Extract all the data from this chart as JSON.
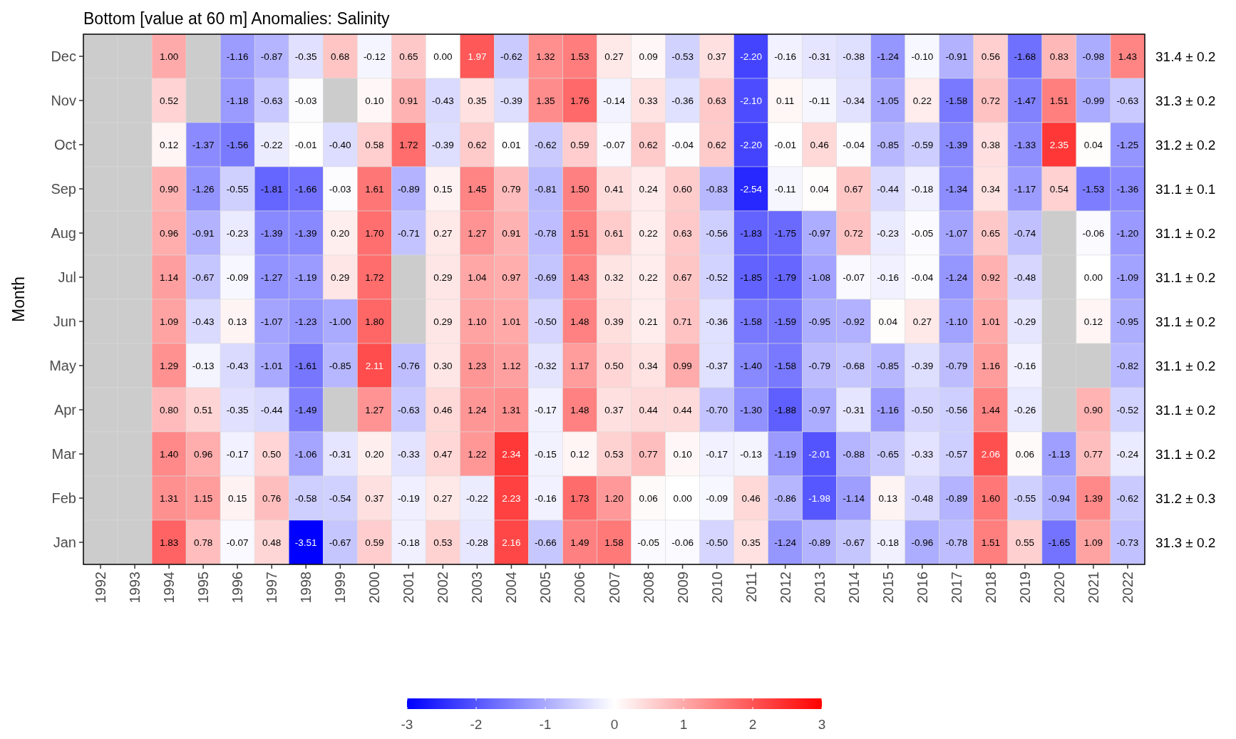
{
  "chart_data": {
    "type": "heatmap",
    "title": "Bottom [value at 60 m] Anomalies: Salinity",
    "ylabel": "Month",
    "categories": [
      "1992",
      "1993",
      "1994",
      "1995",
      "1996",
      "1997",
      "1998",
      "1999",
      "2000",
      "2001",
      "2002",
      "2003",
      "2004",
      "2005",
      "2006",
      "2007",
      "2008",
      "2009",
      "2010",
      "2011",
      "2012",
      "2013",
      "2014",
      "2015",
      "2016",
      "2017",
      "2018",
      "2019",
      "2020",
      "2021",
      "2022"
    ],
    "y_categories": [
      "Dec",
      "Nov",
      "Oct",
      "Sep",
      "Aug",
      "Jul",
      "Jun",
      "May",
      "Apr",
      "Mar",
      "Feb",
      "Jan"
    ],
    "y2_categories": [
      "31.4 ± 0.2",
      "31.3 ± 0.2",
      "31.2 ± 0.2",
      "31.1 ± 0.1",
      "31.1 ± 0.2",
      "31.1 ± 0.2",
      "31.1 ± 0.2",
      "31.1 ± 0.2",
      "31.1 ± 0.2",
      "31.1 ± 0.2",
      "31.2 ± 0.3",
      "31.3 ± 0.2"
    ],
    "cells": [
      [
        null,
        null,
        1.0,
        null,
        -1.16,
        -0.87,
        -0.35,
        0.68,
        -0.12,
        0.65,
        0.0,
        1.97,
        -0.62,
        1.32,
        1.53,
        0.27,
        0.09,
        -0.53,
        0.37,
        -2.2,
        -0.16,
        -0.31,
        -0.38,
        -1.24,
        -0.1,
        -0.91,
        0.56,
        -1.68,
        0.83,
        -0.98,
        1.43
      ],
      [
        null,
        null,
        0.52,
        null,
        -1.18,
        -0.63,
        -0.03,
        null,
        0.1,
        0.91,
        -0.43,
        0.35,
        -0.39,
        1.35,
        1.76,
        -0.14,
        0.33,
        -0.36,
        0.63,
        -2.1,
        0.11,
        -0.11,
        -0.34,
        -1.05,
        0.22,
        -1.58,
        0.72,
        -1.47,
        1.51,
        -0.99,
        -0.63
      ],
      [
        null,
        null,
        0.12,
        -1.37,
        -1.56,
        -0.22,
        -0.01,
        -0.4,
        0.58,
        1.72,
        -0.39,
        0.62,
        0.01,
        -0.62,
        0.59,
        -0.07,
        0.62,
        -0.04,
        0.62,
        -2.2,
        -0.01,
        0.46,
        -0.04,
        -0.85,
        -0.59,
        -1.39,
        0.38,
        -1.33,
        2.35,
        0.04,
        -1.25
      ],
      [
        null,
        null,
        0.9,
        -1.26,
        -0.55,
        -1.81,
        -1.66,
        -0.03,
        1.61,
        -0.89,
        0.15,
        1.45,
        0.79,
        -0.81,
        1.5,
        0.41,
        0.24,
        0.6,
        -0.83,
        -2.54,
        -0.11,
        0.04,
        0.67,
        -0.44,
        -0.18,
        -1.34,
        0.34,
        -1.17,
        0.54,
        -1.53,
        -1.36
      ],
      [
        null,
        null,
        0.96,
        -0.91,
        -0.23,
        -1.39,
        -1.39,
        0.2,
        1.7,
        -0.71,
        0.27,
        1.27,
        0.91,
        -0.78,
        1.51,
        0.61,
        0.22,
        0.63,
        -0.56,
        -1.83,
        -1.75,
        -0.97,
        0.72,
        -0.23,
        -0.05,
        -1.07,
        0.65,
        -0.74,
        null,
        -0.06,
        -1.2
      ],
      [
        null,
        null,
        1.14,
        -0.67,
        -0.09,
        -1.27,
        -1.19,
        0.29,
        1.72,
        null,
        0.29,
        1.04,
        0.97,
        -0.69,
        1.43,
        0.32,
        0.22,
        0.67,
        -0.52,
        -1.85,
        -1.79,
        -1.08,
        -0.07,
        -0.16,
        -0.04,
        -1.24,
        0.92,
        -0.48,
        null,
        0.0,
        -1.09
      ],
      [
        null,
        null,
        1.09,
        -0.43,
        0.13,
        -1.07,
        -1.23,
        -1.0,
        1.8,
        null,
        0.29,
        1.1,
        1.01,
        -0.5,
        1.48,
        0.39,
        0.21,
        0.71,
        -0.36,
        -1.58,
        -1.59,
        -0.95,
        -0.92,
        0.04,
        0.27,
        -1.1,
        1.01,
        -0.29,
        null,
        0.12,
        -0.95
      ],
      [
        null,
        null,
        1.29,
        -0.13,
        -0.43,
        -1.01,
        -1.61,
        -0.85,
        2.11,
        -0.76,
        0.3,
        1.23,
        1.12,
        -0.32,
        1.17,
        0.5,
        0.34,
        0.99,
        -0.37,
        -1.4,
        -1.58,
        -0.79,
        -0.68,
        -0.85,
        -0.39,
        -0.79,
        1.16,
        -0.16,
        null,
        null,
        -0.82
      ],
      [
        null,
        null,
        0.8,
        0.51,
        -0.35,
        -0.44,
        -1.49,
        null,
        1.27,
        -0.63,
        0.46,
        1.24,
        1.31,
        -0.17,
        1.48,
        0.37,
        0.44,
        0.44,
        -0.7,
        -1.3,
        -1.88,
        -0.97,
        -0.31,
        -1.16,
        -0.5,
        -0.56,
        1.44,
        -0.26,
        null,
        0.9,
        -0.52
      ],
      [
        null,
        null,
        1.4,
        0.96,
        -0.17,
        0.5,
        -1.06,
        -0.31,
        0.2,
        -0.33,
        0.47,
        1.22,
        2.34,
        -0.15,
        0.12,
        0.53,
        0.77,
        0.1,
        -0.17,
        -0.13,
        -1.19,
        -2.01,
        -0.88,
        -0.65,
        -0.33,
        -0.57,
        2.06,
        0.06,
        -1.13,
        0.77,
        -0.24
      ],
      [
        null,
        null,
        1.31,
        1.15,
        0.15,
        0.76,
        -0.58,
        -0.54,
        0.37,
        -0.19,
        0.27,
        -0.22,
        2.23,
        -0.16,
        1.73,
        1.2,
        0.06,
        0.0,
        -0.09,
        0.46,
        -0.86,
        -1.98,
        -1.14,
        0.13,
        -0.48,
        -0.89,
        1.6,
        -0.55,
        -0.94,
        1.39,
        -0.62
      ],
      [
        null,
        null,
        1.83,
        0.78,
        -0.07,
        0.48,
        -3.51,
        -0.67,
        0.59,
        -0.18,
        0.53,
        -0.28,
        2.16,
        -0.66,
        1.49,
        1.58,
        -0.05,
        -0.06,
        -0.5,
        0.35,
        -1.24,
        -0.89,
        -0.67,
        -0.18,
        -0.96,
        -0.78,
        1.51,
        0.55,
        -1.65,
        1.09,
        -0.73
      ]
    ],
    "cell_labels": [
      [
        null,
        null,
        "1.00",
        null,
        "-1.16",
        "-0.87",
        "-0.35",
        "0.68",
        "-0.12",
        "0.65",
        "0.00",
        "1.97",
        "-0.62",
        "1.32",
        "1.53",
        "0.27",
        "0.09",
        "-0.53",
        "0.37",
        "-2.20",
        "-0.16",
        "-0.31",
        "-0.38",
        "-1.24",
        "-0.10",
        "-0.91",
        "0.56",
        "-1.68",
        "0.83",
        "-0.98",
        "1.43"
      ],
      [
        null,
        null,
        "0.52",
        null,
        "-1.18",
        "-0.63",
        "-0.03",
        null,
        "0.10",
        "0.91",
        "-0.43",
        "0.35",
        "-0.39",
        "1.35",
        "1.76",
        "-0.14",
        "0.33",
        "-0.36",
        "0.63",
        "-2.10",
        "0.11",
        "-0.11",
        "-0.34",
        "-1.05",
        "0.22",
        "-1.58",
        "0.72",
        "-1.47",
        "1.51",
        "-0.99",
        "-0.63"
      ],
      [
        null,
        null,
        "0.12",
        "-1.37",
        "-1.56",
        "-0.22",
        "-0.01",
        "-0.40",
        "0.58",
        "1.72",
        "-0.39",
        "0.62",
        "0.01",
        "-0.62",
        "0.59",
        "-0.07",
        "0.62",
        "-0.04",
        "0.62",
        "-2.20",
        "-0.01",
        "0.46",
        "-0.04",
        "-0.85",
        "-0.59",
        "-1.39",
        "0.38",
        "-1.33",
        "2.35",
        "0.04",
        "-1.25"
      ],
      [
        null,
        null,
        "0.90",
        "-1.26",
        "-0.55",
        "-1.81",
        "-1.66",
        "-0.03",
        "1.61",
        "-0.89",
        "0.15",
        "1.45",
        "0.79",
        "-0.81",
        "1.50",
        "0.41",
        "0.24",
        "0.60",
        "-0.83",
        "-2.54",
        "-0.11",
        "0.04",
        "0.67",
        "-0.44",
        "-0.18",
        "-1.34",
        "0.34",
        "-1.17",
        "0.54",
        "-1.53",
        "-1.36"
      ],
      [
        null,
        null,
        "0.96",
        "-0.91",
        "-0.23",
        "-1.39",
        "-1.39",
        "0.20",
        "1.70",
        "-0.71",
        "0.27",
        "1.27",
        "0.91",
        "-0.78",
        "1.51",
        "0.61",
        "0.22",
        "0.63",
        "-0.56",
        "-1.83",
        "-1.75",
        "-0.97",
        "0.72",
        "-0.23",
        "-0.05",
        "-1.07",
        "0.65",
        "-0.74",
        null,
        "-0.06",
        "-1.20"
      ],
      [
        null,
        null,
        "1.14",
        "-0.67",
        "-0.09",
        "-1.27",
        "-1.19",
        "0.29",
        "1.72",
        null,
        "0.29",
        "1.04",
        "0.97",
        "-0.69",
        "1.43",
        "0.32",
        "0.22",
        "0.67",
        "-0.52",
        "-1.85",
        "-1.79",
        "-1.08",
        "-0.07",
        "-0.16",
        "-0.04",
        "-1.24",
        "0.92",
        "-0.48",
        null,
        "0.00",
        "-1.09"
      ],
      [
        null,
        null,
        "1.09",
        "-0.43",
        "0.13",
        "-1.07",
        "-1.23",
        "-1.00",
        "1.80",
        null,
        "0.29",
        "1.10",
        "1.01",
        "-0.50",
        "1.48",
        "0.39",
        "0.21",
        "0.71",
        "-0.36",
        "-1.58",
        "-1.59",
        "-0.95",
        "-0.92",
        "0.04",
        "0.27",
        "-1.10",
        "1.01",
        "-0.29",
        null,
        "0.12",
        "-0.95"
      ],
      [
        null,
        null,
        "1.29",
        "-0.13",
        "-0.43",
        "-1.01",
        "-1.61",
        "-0.85",
        "2.11",
        "-0.76",
        "0.30",
        "1.23",
        "1.12",
        "-0.32",
        "1.17",
        "0.50",
        "0.34",
        "0.99",
        "-0.37",
        "-1.40",
        "-1.58",
        "-0.79",
        "-0.68",
        "-0.85",
        "-0.39",
        "-0.79",
        "1.16",
        "-0.16",
        null,
        null,
        "-0.82"
      ],
      [
        null,
        null,
        "0.80",
        "0.51",
        "-0.35",
        "-0.44",
        "-1.49",
        null,
        "1.27",
        "-0.63",
        "0.46",
        "1.24",
        "1.31",
        "-0.17",
        "1.48",
        "0.37",
        "0.44",
        "0.44",
        "-0.70",
        "-1.30",
        "-1.88",
        "-0.97",
        "-0.31",
        "-1.16",
        "-0.50",
        "-0.56",
        "1.44",
        "-0.26",
        null,
        "0.90",
        "-0.52"
      ],
      [
        null,
        null,
        "1.40",
        "0.96",
        "-0.17",
        "0.50",
        "-1.06",
        "-0.31",
        "0.20",
        "-0.33",
        "0.47",
        "1.22",
        "2.34",
        "-0.15",
        "0.12",
        "0.53",
        "0.77",
        "0.10",
        "-0.17",
        "-0.13",
        "-1.19",
        "-2.01",
        "-0.88",
        "-0.65",
        "-0.33",
        "-0.57",
        "2.06",
        "0.06",
        "-1.13",
        "0.77",
        "-0.24"
      ],
      [
        null,
        null,
        "1.31",
        "1.15",
        "0.15",
        "0.76",
        "-0.58",
        "-0.54",
        "0.37",
        "-0.19",
        "0.27",
        "-0.22",
        "2.23",
        "-0.16",
        "1.73",
        "1.20",
        "0.06",
        "0.00",
        "-0.09",
        "0.46",
        "-0.86",
        "-1.98",
        "-1.14",
        "0.13",
        "-0.48",
        "-0.89",
        "1.60",
        "-0.55",
        "-0.94",
        "1.39",
        "-0.62"
      ],
      [
        null,
        null,
        "1.83",
        "0.78",
        "-0.07",
        "0.48",
        "-3.51",
        "-0.67",
        "0.59",
        "-0.18",
        "0.53",
        "-0.28",
        "2.16",
        "-0.66",
        "1.49",
        "1.58",
        "-0.05",
        "-0.06",
        "-0.50",
        "0.35",
        "-1.24",
        "-0.89",
        "-0.67",
        "-0.18",
        "-0.96",
        "-0.78",
        "1.51",
        "0.55",
        "-1.65",
        "1.09",
        "-0.73"
      ]
    ],
    "clim": [
      -3,
      3
    ],
    "cticks": [
      -3,
      -2,
      -1,
      0,
      1,
      2,
      3
    ]
  }
}
